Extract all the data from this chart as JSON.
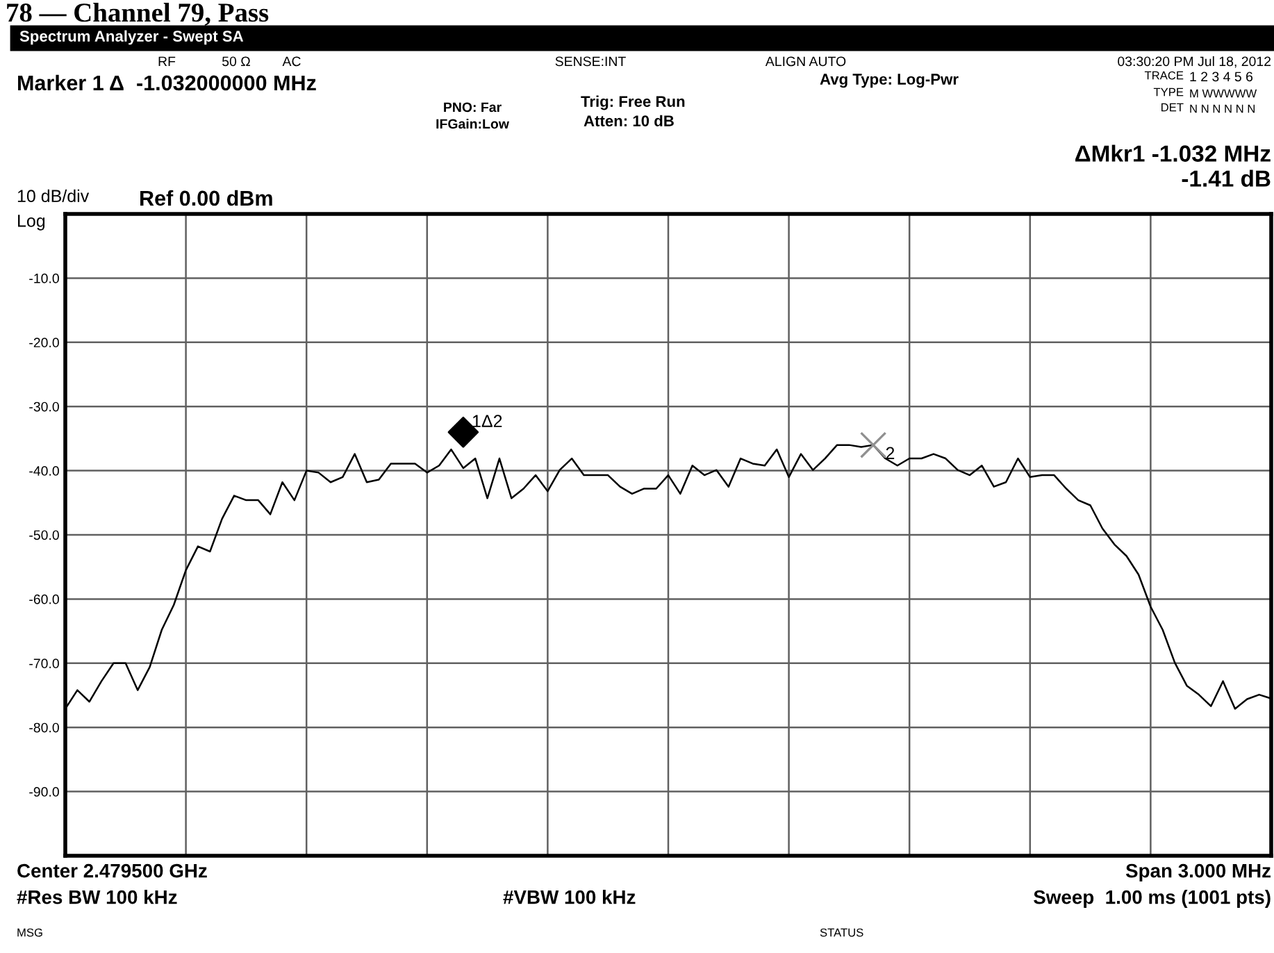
{
  "chart_data": {
    "type": "line",
    "title": "78 — Channel 79, Pass",
    "subtitle": "Spectrum Analyzer - Swept SA",
    "ylabel": "10 dB/div",
    "categories": [
      null,
      null,
      null,
      null,
      null,
      null,
      null,
      null,
      null,
      null,
      null,
      null,
      null,
      null,
      null,
      null,
      null,
      null,
      null,
      null,
      null,
      null,
      null,
      null,
      null,
      null,
      null,
      null,
      null,
      null,
      null,
      null,
      null,
      null,
      null,
      null,
      null,
      null,
      null,
      null,
      null,
      null,
      null,
      null,
      null,
      null,
      null,
      null,
      null,
      null,
      null,
      null,
      null,
      null,
      null,
      null,
      null,
      null,
      null,
      null,
      null,
      null,
      null,
      null,
      null,
      null,
      null,
      null,
      null,
      null,
      null,
      null,
      null,
      null,
      null,
      null,
      null,
      null,
      null,
      null,
      null,
      null,
      null,
      null,
      null,
      null,
      null,
      null,
      null,
      null,
      null,
      null,
      null,
      null,
      null,
      null,
      null,
      null,
      null,
      null,
      null
    ],
    "series": [
      {
        "color": "#000000",
        "values": [
          -77.1,
          -74.2,
          -76,
          -72.8,
          -70,
          -70,
          -74.2,
          -70.6,
          -64.8,
          -60.9,
          -55.5,
          -51.8,
          -52.6,
          -47.5,
          -43.9,
          -44.6,
          -44.6,
          -46.8,
          -41.8,
          -44.6,
          -40,
          -40.3,
          -41.8,
          -41,
          -37.4,
          -41.8,
          -41.4,
          -38.9,
          -38.9,
          -38.9,
          -40.3,
          -39.2,
          -36.7,
          -39.6,
          -38.1,
          -44.3,
          -38.1,
          -44.3,
          -42.8,
          -40.7,
          -43.2,
          -39.9,
          -38.1,
          -40.7,
          -40.7,
          -40.7,
          -42.5,
          -43.6,
          -42.8,
          -42.8,
          -40.7,
          -43.6,
          -39.2,
          -40.7,
          -39.9,
          -42.5,
          -38.1,
          -38.9,
          -39.2,
          -36.7,
          -41,
          -37.4,
          -39.9,
          -38.1,
          -36,
          -36,
          -36.3,
          -36,
          -38.1,
          -39.2,
          -38.1,
          -38.1,
          -37.4,
          -38.1,
          -39.9,
          -40.7,
          -39.2,
          -42.5,
          -41.8,
          -38.1,
          -41,
          -40.7,
          -40.7,
          -42.8,
          -44.6,
          -45.4,
          -49,
          -51.5,
          -53.3,
          -56.2,
          -61.2,
          -64.8,
          -69.9,
          -73.5,
          -74.9,
          -76.7,
          -72.8,
          -77.1,
          -75.6,
          -74.9,
          -75.5
        ]
      },
      {
        "type": "scatter",
        "marker": "diamond",
        "color": "#000000",
        "values": [
          null,
          null,
          null,
          null,
          null,
          null,
          null,
          null,
          null,
          null,
          null,
          null,
          null,
          null,
          null,
          null,
          null,
          null,
          null,
          null,
          null,
          null,
          null,
          null,
          null,
          null,
          null,
          null,
          null,
          null,
          null,
          null,
          null,
          -34,
          null,
          null,
          null,
          null,
          null,
          null,
          null,
          null,
          null,
          null,
          null,
          null,
          null,
          null,
          null,
          null,
          null,
          null,
          null,
          null,
          null,
          null,
          null,
          null,
          null,
          null,
          null,
          null,
          null,
          null,
          null,
          null,
          null,
          null,
          null,
          null,
          null,
          null,
          null,
          null,
          null,
          null,
          null,
          null,
          null,
          null,
          null,
          null,
          null,
          null,
          null,
          null,
          null,
          null,
          null,
          null,
          null,
          null,
          null,
          null,
          null,
          null,
          null,
          null,
          null,
          null,
          null
        ]
      },
      {
        "type": "scatter",
        "marker": "cross",
        "color": "#909090",
        "values": [
          null,
          null,
          null,
          null,
          null,
          null,
          null,
          null,
          null,
          null,
          null,
          null,
          null,
          null,
          null,
          null,
          null,
          null,
          null,
          null,
          null,
          null,
          null,
          null,
          null,
          null,
          null,
          null,
          null,
          null,
          null,
          null,
          null,
          null,
          null,
          null,
          null,
          null,
          null,
          null,
          null,
          null,
          null,
          null,
          null,
          null,
          null,
          null,
          null,
          null,
          null,
          null,
          null,
          null,
          null,
          null,
          null,
          null,
          null,
          null,
          null,
          null,
          null,
          null,
          null,
          null,
          null,
          -36,
          null,
          null,
          null,
          null,
          null,
          null,
          null,
          null,
          null,
          null,
          null,
          null,
          null,
          null,
          null,
          null,
          null,
          null,
          null,
          null,
          null,
          null,
          null,
          null,
          null,
          null,
          null,
          null,
          null,
          null,
          null,
          null,
          null
        ]
      }
    ],
    "ylim": [
      -100,
      0
    ],
    "yticks": [
      {
        "value": -10,
        "label": "-10.0"
      },
      {
        "value": -20,
        "label": "-20.0"
      },
      {
        "value": -30,
        "label": "-30.0"
      },
      {
        "value": -40,
        "label": "-40.0"
      },
      {
        "value": -50,
        "label": "-50.0"
      },
      {
        "value": -60,
        "label": "-60.0"
      },
      {
        "value": -70,
        "label": "-70.0"
      },
      {
        "value": -80,
        "label": "-80.0"
      },
      {
        "value": -90,
        "label": "-90.0"
      }
    ],
    "grid": true,
    "tick_labels": "y",
    "line_style": "solid",
    "annotations": [
      "RF",
      "50 Ω",
      "AC",
      "SENSE:INT",
      "ALIGN AUTO",
      "03:30:20 PM Jul 18, 2012",
      "Marker 1 Δ  -1.032000000 MHz",
      "PNO: Far",
      "IFGain:Low",
      "Trig: Free Run",
      "Atten: 10 dB",
      "Avg Type: Log-Pwr",
      "TRACE",
      "1 2 3 4 5 6",
      "TYPE",
      "M WWWWW",
      "DET",
      "N N N N N N",
      "ΔMkr1 -1.032 MHz",
      "-1.41 dB",
      "Log",
      "Ref 0.00 dBm",
      "Center 2.479500 GHz",
      "Span 3.000 MHz",
      "#Res BW 100 kHz",
      "#VBW 100 kHz",
      "Sweep  1.00 ms (1001 pts)",
      "MSG",
      "STATUS",
      "1Δ2",
      "2"
    ]
  }
}
